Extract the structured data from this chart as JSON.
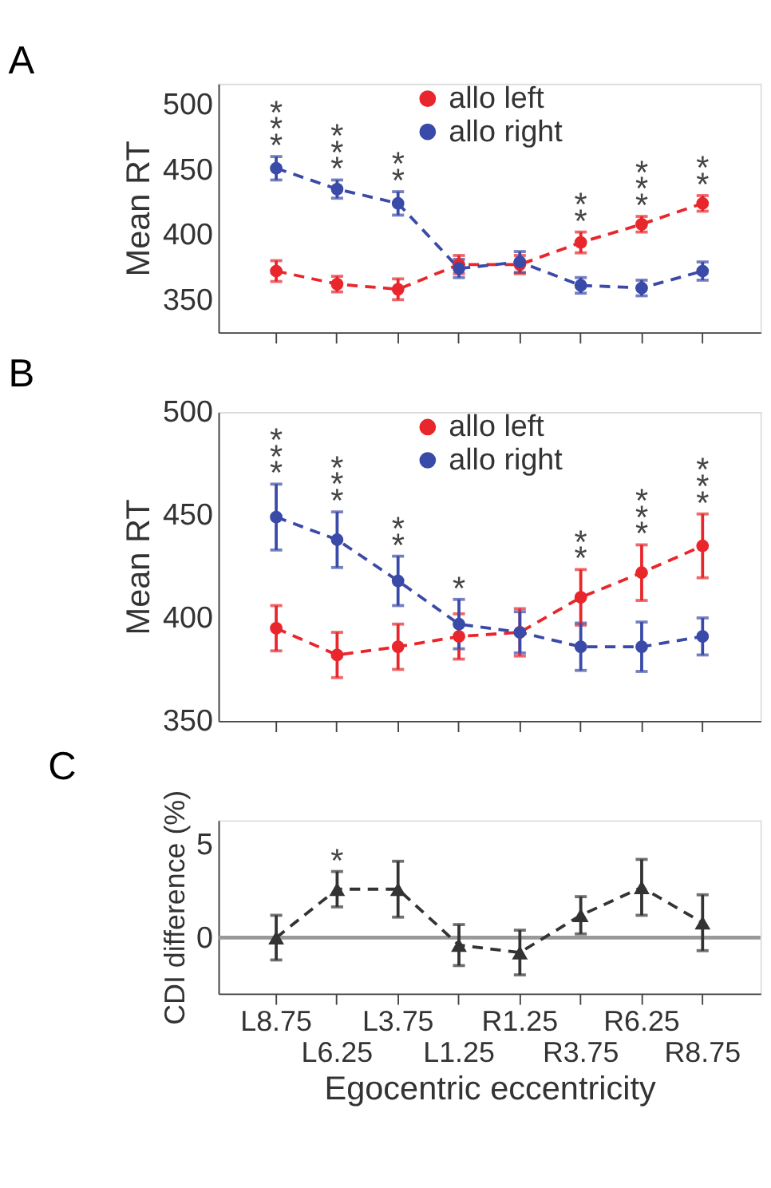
{
  "chart_data": [
    {
      "type": "line",
      "title": "A",
      "ylabel": "Mean RT",
      "categories": [
        null,
        null,
        null,
        null,
        null,
        null,
        null,
        null
      ],
      "ylim": [
        325,
        516
      ],
      "yticks": [
        350,
        400,
        450,
        500
      ],
      "tick_labels": "y",
      "legend": "top right",
      "marker": "circle",
      "line_style": "dashed",
      "series": [
        {
          "name": "allo left",
          "color": "#e8262b",
          "values": [
            372,
            362,
            358,
            377,
            377,
            394,
            408,
            424
          ],
          "errors": [
            8,
            6,
            8,
            7,
            7,
            8,
            6,
            6
          ],
          "value_labels": [
            null,
            null,
            null,
            null,
            null,
            "**",
            "***",
            "**"
          ]
        },
        {
          "name": "allo right",
          "color": "#3a4aa8",
          "values": [
            451,
            435,
            424,
            374,
            379,
            361,
            359,
            372
          ],
          "errors": [
            9,
            7,
            9,
            7,
            8,
            6,
            6,
            7
          ],
          "value_labels": [
            "***",
            "***",
            "**",
            null,
            null,
            null,
            null,
            null
          ]
        }
      ]
    },
    {
      "type": "line",
      "title": "B",
      "ylabel": "Mean RT",
      "categories": [
        null,
        null,
        null,
        null,
        null,
        null,
        null,
        null
      ],
      "ylim": [
        350,
        500
      ],
      "yticks": [
        350,
        400,
        450,
        500
      ],
      "tick_labels": "y",
      "legend": "top right",
      "marker": "circle",
      "line_style": "dashed",
      "series": [
        {
          "name": "allo left",
          "color": "#e8262b",
          "values": [
            395,
            382,
            386,
            391,
            393,
            410,
            422,
            435
          ],
          "errors": [
            11,
            11,
            11,
            11,
            11.5,
            13.5,
            13.5,
            15.5
          ],
          "value_labels": [
            null,
            null,
            null,
            null,
            null,
            "**",
            "***",
            "***"
          ]
        },
        {
          "name": "allo right",
          "color": "#3a4aa8",
          "values": [
            449,
            438,
            418,
            397,
            393,
            386,
            386,
            391
          ],
          "errors": [
            16,
            13.5,
            12,
            12,
            10,
            11.5,
            12,
            9
          ],
          "value_labels": [
            "***",
            "***",
            "**",
            "*",
            null,
            null,
            null,
            null
          ]
        }
      ]
    },
    {
      "type": "line",
      "title": "C",
      "ylabel": "CDI difference (%)",
      "xlabel": "Egocentric eccentricity",
      "categories": [
        "L8.75",
        "L6.25",
        "L3.75",
        "L1.25",
        "R1.25",
        "R3.75",
        "R6.25",
        "R8.75"
      ],
      "ylim": [
        -3,
        6.3
      ],
      "yticks": [
        0,
        5
      ],
      "marker": "triangle",
      "line_style": "dashed",
      "series": [
        {
          "color": "#333333",
          "values": [
            0,
            2.6,
            2.6,
            -0.4,
            -0.8,
            1.2,
            2.7,
            0.8
          ],
          "errors": [
            1.2,
            0.95,
            1.5,
            1.1,
            1.2,
            1,
            1.5,
            1.5
          ],
          "value_labels": [
            null,
            "*",
            null,
            null,
            null,
            null,
            null,
            null
          ]
        }
      ],
      "ref_lines": [
        {
          "axis": "y",
          "value": 0,
          "color": "#999999"
        }
      ]
    }
  ]
}
